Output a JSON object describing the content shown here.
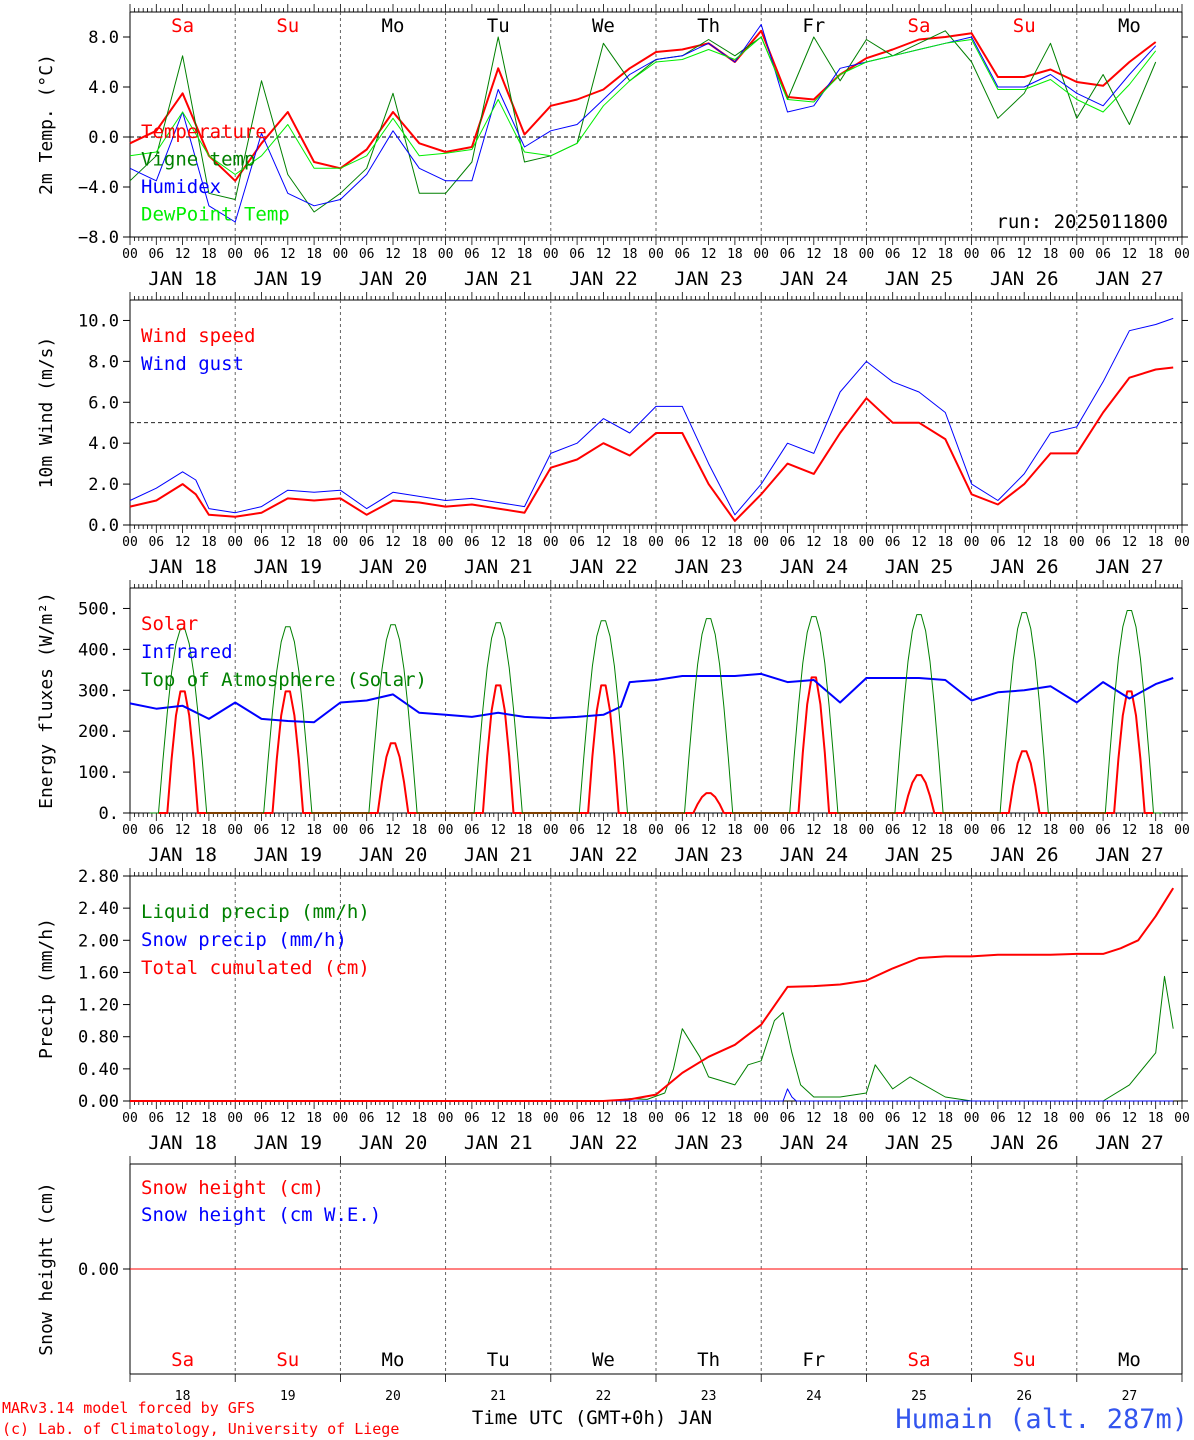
{
  "run_label": "run: 2025011800",
  "footer": {
    "credit_line1": "MARv3.14 model forced by GFS",
    "credit_line2": "(c) Lab. of Climatology, University of Liege",
    "xaxis_title": "Time UTC (GMT+0h) JAN",
    "station": "Humain (alt. 287m)"
  },
  "days": [
    "Sa",
    "Su",
    "Mo",
    "Tu",
    "We",
    "Th",
    "Fr",
    "Sa",
    "Su",
    "Mo"
  ],
  "weekend_days": [
    0,
    1,
    7,
    8
  ],
  "date_labels": [
    "JAN 18",
    "JAN 19",
    "JAN 20",
    "JAN 21",
    "JAN 22",
    "JAN 23",
    "JAN 24",
    "JAN 25",
    "JAN 26",
    "JAN 27"
  ],
  "day_numbers": [
    "18",
    "19",
    "20",
    "21",
    "22",
    "23",
    "24",
    "25",
    "26",
    "27"
  ],
  "hour_labels": [
    "00",
    "06",
    "12",
    "18"
  ],
  "colors": {
    "red": "#ff0000",
    "green": "#008000",
    "blue": "#0000ff",
    "lightgreen": "#00ee00",
    "station": "#3355ee"
  },
  "chart_data": [
    {
      "type": "line",
      "ylabel": "2m Temp. (°C)",
      "ylim": [
        -8,
        10
      ],
      "yticks": [
        "8.0",
        "4.0",
        "0.0",
        "−4.0",
        "−8.0"
      ],
      "ytick_values": [
        8,
        4,
        0,
        -4,
        -8
      ],
      "ref_line": 0,
      "x_unit": "hours from JAN 18 00 UTC",
      "series": [
        {
          "name": "Temperature",
          "color": "red",
          "width": 2,
          "x": [
            0,
            6,
            12,
            18,
            24,
            30,
            36,
            42,
            48,
            54,
            60,
            66,
            72,
            78,
            84,
            90,
            96,
            102,
            108,
            114,
            120,
            126,
            132,
            138,
            144,
            150,
            156,
            162,
            168,
            174,
            180,
            186,
            192,
            198,
            204,
            210,
            216,
            222,
            228,
            234
          ],
          "y": [
            -0.5,
            0.5,
            3.5,
            -1.5,
            -3.5,
            -0.5,
            2.0,
            -2.0,
            -2.5,
            -1.0,
            2.0,
            -0.5,
            -1.2,
            -0.8,
            5.5,
            0.2,
            2.5,
            3.0,
            3.8,
            5.5,
            6.8,
            7.0,
            7.5,
            6.0,
            8.5,
            3.2,
            3.0,
            5.0,
            6.3,
            7.0,
            7.8,
            8.0,
            8.3,
            4.8,
            4.8,
            5.4,
            4.4,
            4.1,
            6.0,
            7.6
          ]
        },
        {
          "name": "Vigne temp",
          "color": "green",
          "width": 1,
          "x": [
            0,
            6,
            12,
            18,
            24,
            30,
            36,
            42,
            48,
            54,
            60,
            66,
            72,
            78,
            84,
            90,
            96,
            102,
            108,
            114,
            120,
            126,
            132,
            138,
            144,
            150,
            156,
            162,
            168,
            174,
            180,
            186,
            192,
            198,
            204,
            210,
            216,
            222,
            228,
            234
          ],
          "y": [
            -3.5,
            -1.5,
            6.5,
            -4.5,
            -5.0,
            4.5,
            -3.0,
            -6.0,
            -4.5,
            -2.5,
            3.5,
            -4.5,
            -4.5,
            -2.0,
            8.0,
            -2.0,
            -1.5,
            -0.5,
            7.5,
            4.5,
            6.2,
            6.5,
            7.8,
            6.5,
            8.0,
            3.0,
            8.0,
            4.5,
            7.8,
            6.5,
            7.5,
            8.5,
            6.0,
            1.5,
            3.5,
            7.5,
            1.5,
            5.0,
            1.0,
            6.0
          ]
        },
        {
          "name": "Humidex",
          "color": "blue",
          "width": 1,
          "x": [
            0,
            6,
            12,
            18,
            24,
            30,
            36,
            42,
            48,
            54,
            60,
            66,
            72,
            78,
            84,
            90,
            96,
            102,
            108,
            114,
            120,
            126,
            132,
            138,
            144,
            150,
            156,
            162,
            168,
            174,
            180,
            186,
            192,
            198,
            204,
            210,
            216,
            222,
            228,
            234
          ],
          "y": [
            -2.5,
            -3.5,
            2.0,
            -5.5,
            -6.8,
            0.3,
            -4.5,
            -5.5,
            -5.0,
            -3.0,
            0.5,
            -2.5,
            -3.5,
            -3.5,
            3.8,
            -0.8,
            0.5,
            1.0,
            3.0,
            5.0,
            6.2,
            6.5,
            7.5,
            6.0,
            9.0,
            2.0,
            2.5,
            5.5,
            6.0,
            6.5,
            7.0,
            7.5,
            8.0,
            4.0,
            4.0,
            5.0,
            3.5,
            2.5,
            5.0,
            7.3
          ]
        },
        {
          "name": "DewPoint Temp",
          "color": "lightgreen",
          "width": 1,
          "x": [
            0,
            6,
            12,
            18,
            24,
            30,
            36,
            42,
            48,
            54,
            60,
            66,
            72,
            78,
            84,
            90,
            96,
            102,
            108,
            114,
            120,
            126,
            132,
            138,
            144,
            150,
            156,
            162,
            168,
            174,
            180,
            186,
            192,
            198,
            204,
            210,
            216,
            222,
            228,
            234
          ],
          "y": [
            -1.5,
            -1.2,
            2.0,
            -1.5,
            -3.0,
            -1.5,
            1.0,
            -2.5,
            -2.5,
            -1.5,
            1.5,
            -1.5,
            -1.3,
            -1.0,
            3.0,
            -1.2,
            -1.5,
            -0.5,
            2.5,
            4.5,
            6.0,
            6.2,
            7.0,
            6.2,
            8.0,
            3.0,
            2.8,
            5.0,
            6.0,
            6.5,
            7.0,
            7.5,
            7.8,
            3.8,
            3.8,
            4.6,
            3.0,
            2.0,
            4.2,
            6.9
          ]
        }
      ]
    },
    {
      "type": "line",
      "ylabel": "10m Wind (m/s)",
      "ylim": [
        0,
        11
      ],
      "yticks": [
        "10.0",
        "8.0",
        "6.0",
        "4.0",
        "2.0",
        "0.0"
      ],
      "ytick_values": [
        10,
        8,
        6,
        4,
        2,
        0
      ],
      "ref_line": 5,
      "x_unit": "hours from JAN 18 00 UTC",
      "series": [
        {
          "name": "Wind speed",
          "color": "red",
          "width": 2,
          "x": [
            0,
            6,
            12,
            15,
            18,
            24,
            30,
            36,
            42,
            48,
            54,
            60,
            66,
            72,
            78,
            84,
            90,
            96,
            102,
            108,
            114,
            120,
            126,
            132,
            138,
            144,
            150,
            156,
            162,
            168,
            174,
            180,
            186,
            192,
            198,
            204,
            210,
            216,
            222,
            228,
            234,
            238
          ],
          "y": [
            0.9,
            1.2,
            2.0,
            1.5,
            0.5,
            0.4,
            0.6,
            1.3,
            1.2,
            1.3,
            0.5,
            1.2,
            1.1,
            0.9,
            1.0,
            0.8,
            0.6,
            2.8,
            3.2,
            4.0,
            3.4,
            4.5,
            4.5,
            2.0,
            0.2,
            1.5,
            3.0,
            2.5,
            4.5,
            6.2,
            5.0,
            5.0,
            4.2,
            1.5,
            1.0,
            2.0,
            3.5,
            3.5,
            5.5,
            7.2,
            7.6,
            7.7
          ]
        },
        {
          "name": "Wind gust",
          "color": "blue",
          "width": 1,
          "x": [
            0,
            6,
            12,
            15,
            18,
            24,
            30,
            36,
            42,
            48,
            54,
            60,
            66,
            72,
            78,
            84,
            90,
            96,
            102,
            108,
            114,
            120,
            126,
            132,
            138,
            144,
            150,
            156,
            162,
            168,
            174,
            180,
            186,
            192,
            198,
            204,
            210,
            216,
            222,
            228,
            234,
            238
          ],
          "y": [
            1.2,
            1.8,
            2.6,
            2.2,
            0.8,
            0.6,
            0.9,
            1.7,
            1.6,
            1.7,
            0.8,
            1.6,
            1.4,
            1.2,
            1.3,
            1.1,
            0.9,
            3.5,
            4.0,
            5.2,
            4.5,
            5.8,
            5.8,
            3.0,
            0.5,
            2.0,
            4.0,
            3.5,
            6.5,
            8.0,
            7.0,
            6.5,
            5.5,
            2.0,
            1.2,
            2.5,
            4.5,
            4.8,
            7.0,
            9.5,
            9.8,
            10.1
          ]
        }
      ]
    },
    {
      "type": "line",
      "ylabel": "Energy fluxes (W/m²)",
      "ylim": [
        0,
        550
      ],
      "yticks": [
        "500.",
        "400.",
        "300.",
        "200.",
        "100.",
        "0."
      ],
      "ytick_values": [
        500,
        400,
        300,
        200,
        100,
        0
      ],
      "x_unit": "hours from JAN 18 00 UTC",
      "daily_peaks": {
        "peak_hour_offset": 12,
        "half_width_hours": 4,
        "Solar": [
          305,
          305,
          175,
          320,
          320,
          50,
          340,
          95,
          155,
          305
        ],
        "Top of Atmosphere (Solar)": [
          455,
          460,
          465,
          470,
          475,
          480,
          485,
          490,
          495,
          500
        ]
      },
      "series": [
        {
          "name": "Solar",
          "color": "red",
          "width": 2,
          "derived_from": "daily_peaks"
        },
        {
          "name": "Infrared",
          "color": "blue",
          "width": 2,
          "x": [
            0,
            6,
            12,
            18,
            24,
            30,
            36,
            42,
            48,
            54,
            60,
            66,
            72,
            78,
            84,
            90,
            96,
            102,
            108,
            112,
            114,
            120,
            126,
            132,
            138,
            144,
            150,
            156,
            162,
            168,
            174,
            180,
            186,
            192,
            198,
            204,
            210,
            216,
            222,
            228,
            234,
            238
          ],
          "y": [
            268,
            255,
            262,
            230,
            270,
            230,
            225,
            222,
            270,
            275,
            290,
            245,
            240,
            235,
            245,
            235,
            232,
            235,
            240,
            260,
            320,
            325,
            335,
            335,
            335,
            340,
            320,
            325,
            270,
            330,
            330,
            330,
            325,
            275,
            295,
            300,
            310,
            270,
            320,
            280,
            315,
            330
          ]
        },
        {
          "name": "Top of Atmosphere (Solar)",
          "color": "green",
          "width": 1,
          "derived_from": "daily_peaks"
        }
      ]
    },
    {
      "type": "line",
      "ylabel": "Precip (mm/h)",
      "ylim": [
        0,
        2.8
      ],
      "yticks": [
        "2.80",
        "2.40",
        "2.00",
        "1.60",
        "1.20",
        "0.80",
        "0.40",
        "0.00"
      ],
      "ytick_values": [
        2.8,
        2.4,
        2.0,
        1.6,
        1.2,
        0.8,
        0.4,
        0.0
      ],
      "x_unit": "hours from JAN 18 00 UTC",
      "series": [
        {
          "name": "Liquid precip (mm/h)",
          "color": "green",
          "width": 1,
          "x": [
            0,
            110,
            114,
            118,
            122,
            124,
            126,
            130,
            132,
            135,
            138,
            141,
            144,
            147,
            149,
            151,
            153,
            156,
            162,
            168,
            170,
            174,
            178,
            186,
            192,
            200,
            210,
            216,
            222,
            228,
            234,
            236,
            238
          ],
          "y": [
            0,
            0,
            0.03,
            0.02,
            0.1,
            0.4,
            0.9,
            0.55,
            0.3,
            0.25,
            0.2,
            0.45,
            0.5,
            1.0,
            1.1,
            0.6,
            0.2,
            0.05,
            0.05,
            0.1,
            0.45,
            0.15,
            0.3,
            0.05,
            0,
            0,
            0,
            0,
            0,
            0.2,
            0.6,
            1.55,
            0.9
          ]
        },
        {
          "name": "Snow precip (mm/h)",
          "color": "blue",
          "width": 1,
          "x": [
            0,
            149,
            150,
            151,
            152,
            238
          ],
          "y": [
            0,
            0,
            0.15,
            0.05,
            0,
            0
          ]
        },
        {
          "name": "Total cumulated (cm)",
          "color": "red",
          "width": 2,
          "x": [
            0,
            108,
            114,
            120,
            126,
            132,
            138,
            144,
            150,
            156,
            162,
            168,
            174,
            180,
            186,
            192,
            198,
            204,
            210,
            216,
            222,
            226,
            230,
            234,
            238
          ],
          "y": [
            0,
            0,
            0.02,
            0.08,
            0.35,
            0.55,
            0.7,
            0.95,
            1.42,
            1.43,
            1.45,
            1.5,
            1.65,
            1.78,
            1.8,
            1.8,
            1.82,
            1.82,
            1.82,
            1.83,
            1.83,
            1.9,
            2.0,
            2.3,
            2.65
          ]
        }
      ]
    },
    {
      "type": "line",
      "ylabel": "Snow height (cm)",
      "ylim": [
        -1,
        1
      ],
      "yticks": [
        "0.00"
      ],
      "ytick_values": [
        0
      ],
      "x_unit": "hours from JAN 18 00 UTC",
      "series": [
        {
          "name": "Snow height (cm)",
          "color": "red",
          "width": 1,
          "x": [
            0,
            240
          ],
          "y": [
            0,
            0
          ]
        },
        {
          "name": "Snow height (cm W.E.)",
          "color": "blue",
          "width": 1,
          "x": [],
          "y": []
        }
      ]
    }
  ]
}
